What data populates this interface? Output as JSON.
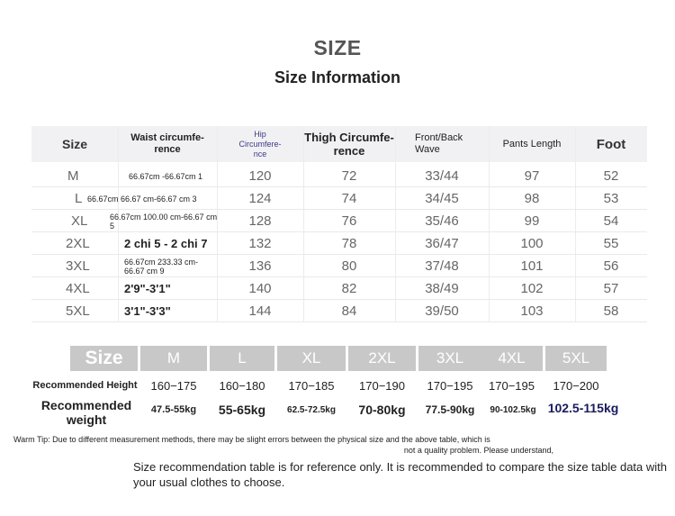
{
  "title": "SIZE",
  "subtitle": "Size Information",
  "table1": {
    "headers": [
      "Size",
      "Waist circumfe-\nrence",
      "Hip\nCircumfere-\nnce",
      "Thigh Circumfe-\nrence",
      "Front/Back\nWave",
      "Pants Length",
      "Foot"
    ],
    "rows": [
      [
        "M",
        "66.67cm -66.67cm 1",
        "120",
        "72",
        "33/44",
        "97",
        "52"
      ],
      [
        "L",
        "66.67cm 66.67 cm-66.67 cm 3",
        "124",
        "74",
        "34/45",
        "98",
        "53"
      ],
      [
        "XL",
        "66.67cm 100.00 cm-66.67 cm 5",
        "128",
        "76",
        "35/46",
        "99",
        "54"
      ],
      [
        "2XL",
        "2 chi 5 - 2 chi 7",
        "132",
        "78",
        "36/47",
        "100",
        "55"
      ],
      [
        "3XL",
        "66.67cm 233.33 cm-66.67 cm 9",
        "136",
        "80",
        "37/48",
        "101",
        "56"
      ],
      [
        "4XL",
        "2'9\"-3'1\"",
        "140",
        "82",
        "38/49",
        "102",
        "57"
      ],
      [
        "5XL",
        "3'1\"-3'3\"",
        "144",
        "84",
        "39/50",
        "103",
        "58"
      ]
    ]
  },
  "table2": {
    "size_label": "Size",
    "sizes": [
      "M",
      "L",
      "XL",
      "2XL",
      "3XL",
      "4XL",
      "5XL"
    ],
    "height_label": "Recommended Height",
    "heights": [
      "160−175",
      "160−180",
      "170−185",
      "170−190",
      "170−195",
      "170−195",
      "170−200"
    ],
    "weight_label": "Recommended weight",
    "weights": [
      "47.5-55kg",
      "55-65kg",
      "62.5-72.5kg",
      "70-80kg",
      "77.5-90kg",
      "90-102.5kg",
      "102.5-115kg"
    ]
  },
  "warm_tip": {
    "line1": "Warm Tip: Due to different measurement methods, there may be slight errors between the physical size and the above table, which is",
    "line2": "not a quality problem. Please understand,"
  },
  "note": "Size recommendation table is for reference only. It is recommended to compare the size table data with your usual clothes to choose.",
  "colors": {
    "header_bg": "#f1f1f3",
    "size_header_bg": "#c8c8c9",
    "accent_text": "#1a1a5e"
  }
}
